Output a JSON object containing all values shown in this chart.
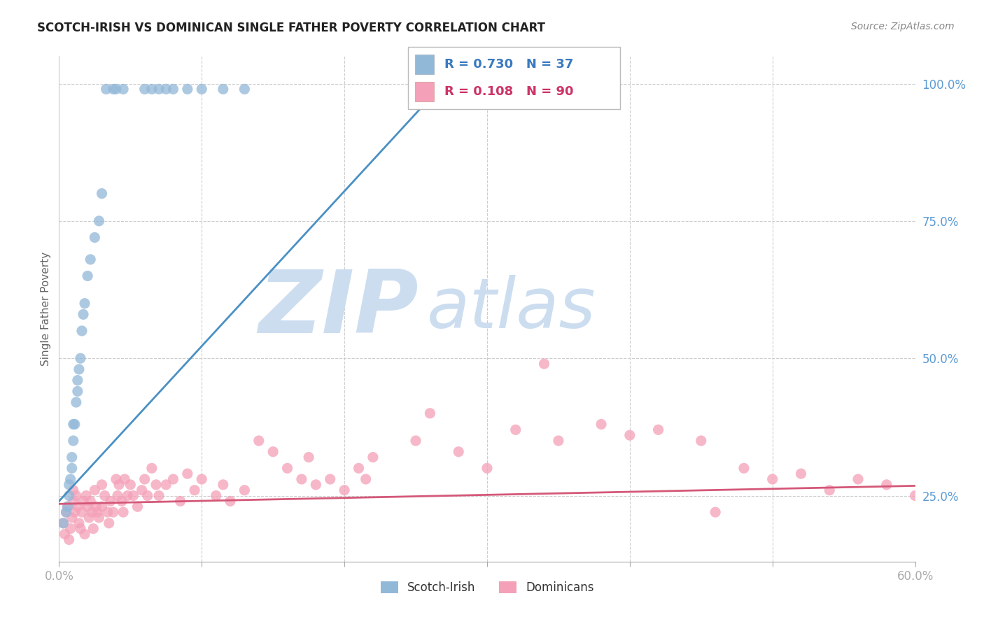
{
  "title": "SCOTCH-IRISH VS DOMINICAN SINGLE FATHER POVERTY CORRELATION CHART",
  "source": "Source: ZipAtlas.com",
  "ylabel": "Single Father Poverty",
  "xlim": [
    0.0,
    0.6
  ],
  "ylim": [
    0.13,
    1.05
  ],
  "xticks": [
    0.0,
    0.1,
    0.2,
    0.3,
    0.4,
    0.5,
    0.6
  ],
  "xticklabels": [
    "0.0%",
    "",
    "",
    "",
    "",
    "",
    "60.0%"
  ],
  "yticks_right": [
    0.25,
    0.5,
    0.75,
    1.0
  ],
  "yticklabels_right": [
    "25.0%",
    "50.0%",
    "75.0%",
    "100.0%"
  ],
  "blue_R": 0.73,
  "blue_N": 37,
  "pink_R": 0.108,
  "pink_N": 90,
  "blue_color": "#92b8d8",
  "pink_color": "#f4a0b8",
  "blue_line_color": "#4a90c4",
  "pink_line_color": "#d45878",
  "grid_color": "#cccccc",
  "watermark_zip": "ZIP",
  "watermark_atlas": "atlas",
  "watermark_color": "#ccddf0",
  "blue_scatter_x": [
    0.003,
    0.005,
    0.006,
    0.007,
    0.007,
    0.008,
    0.009,
    0.009,
    0.01,
    0.01,
    0.011,
    0.012,
    0.013,
    0.013,
    0.014,
    0.015,
    0.016,
    0.017,
    0.018,
    0.02,
    0.022,
    0.025,
    0.028,
    0.03,
    0.033,
    0.038,
    0.04,
    0.045,
    0.06,
    0.065,
    0.07,
    0.075,
    0.08,
    0.09,
    0.1,
    0.115,
    0.13
  ],
  "blue_scatter_y": [
    0.2,
    0.22,
    0.23,
    0.25,
    0.27,
    0.28,
    0.3,
    0.32,
    0.35,
    0.38,
    0.38,
    0.42,
    0.44,
    0.46,
    0.48,
    0.5,
    0.55,
    0.58,
    0.6,
    0.65,
    0.68,
    0.72,
    0.75,
    0.8,
    0.99,
    0.99,
    0.99,
    0.99,
    0.99,
    0.99,
    0.99,
    0.99,
    0.99,
    0.99,
    0.99,
    0.99,
    0.99
  ],
  "pink_scatter_x": [
    0.003,
    0.004,
    0.005,
    0.006,
    0.007,
    0.008,
    0.009,
    0.01,
    0.01,
    0.011,
    0.012,
    0.013,
    0.014,
    0.015,
    0.016,
    0.017,
    0.018,
    0.019,
    0.02,
    0.021,
    0.022,
    0.023,
    0.024,
    0.025,
    0.026,
    0.027,
    0.028,
    0.03,
    0.03,
    0.032,
    0.034,
    0.035,
    0.036,
    0.038,
    0.04,
    0.041,
    0.042,
    0.044,
    0.045,
    0.046,
    0.048,
    0.05,
    0.052,
    0.055,
    0.058,
    0.06,
    0.062,
    0.065,
    0.068,
    0.07,
    0.075,
    0.08,
    0.085,
    0.09,
    0.095,
    0.1,
    0.11,
    0.115,
    0.12,
    0.13,
    0.14,
    0.15,
    0.16,
    0.17,
    0.175,
    0.18,
    0.19,
    0.2,
    0.21,
    0.215,
    0.22,
    0.25,
    0.28,
    0.3,
    0.32,
    0.35,
    0.38,
    0.4,
    0.42,
    0.45,
    0.48,
    0.5,
    0.52,
    0.54,
    0.56,
    0.58,
    0.6,
    0.26,
    0.34,
    0.46
  ],
  "pink_scatter_y": [
    0.2,
    0.18,
    0.22,
    0.23,
    0.17,
    0.19,
    0.21,
    0.24,
    0.26,
    0.22,
    0.25,
    0.23,
    0.2,
    0.19,
    0.22,
    0.24,
    0.18,
    0.25,
    0.23,
    0.21,
    0.24,
    0.22,
    0.19,
    0.26,
    0.23,
    0.22,
    0.21,
    0.27,
    0.23,
    0.25,
    0.22,
    0.2,
    0.24,
    0.22,
    0.28,
    0.25,
    0.27,
    0.24,
    0.22,
    0.28,
    0.25,
    0.27,
    0.25,
    0.23,
    0.26,
    0.28,
    0.25,
    0.3,
    0.27,
    0.25,
    0.27,
    0.28,
    0.24,
    0.29,
    0.26,
    0.28,
    0.25,
    0.27,
    0.24,
    0.26,
    0.35,
    0.33,
    0.3,
    0.28,
    0.32,
    0.27,
    0.28,
    0.26,
    0.3,
    0.28,
    0.32,
    0.35,
    0.33,
    0.3,
    0.37,
    0.35,
    0.38,
    0.36,
    0.37,
    0.35,
    0.3,
    0.28,
    0.29,
    0.26,
    0.28,
    0.27,
    0.25,
    0.4,
    0.49,
    0.22
  ],
  "blue_line_x0": 0.0,
  "blue_line_y0": 0.24,
  "blue_line_x1": 0.28,
  "blue_line_y1": 1.03,
  "pink_line_x0": 0.0,
  "pink_line_y0": 0.235,
  "pink_line_x1": 0.6,
  "pink_line_y1": 0.268
}
